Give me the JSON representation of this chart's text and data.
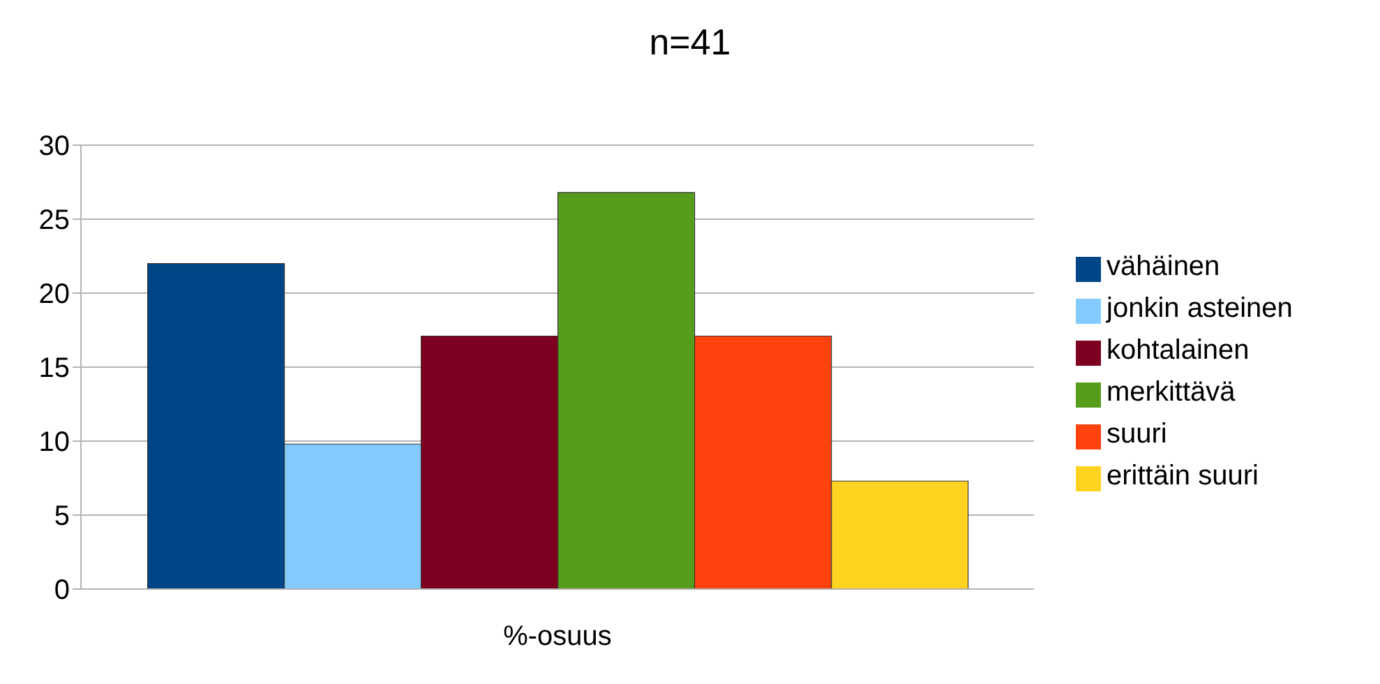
{
  "chart_data": {
    "type": "bar",
    "title": "n=41",
    "xlabel": "%-osuus",
    "categories": [
      null
    ],
    "series": [
      {
        "name": "vähäinen",
        "color": "#004586",
        "values": [
          22.0
        ]
      },
      {
        "name": "jonkin asteinen",
        "color": "#83caff",
        "values": [
          9.8
        ]
      },
      {
        "name": "kohtalainen",
        "color": "#7e0021",
        "values": [
          17.1
        ]
      },
      {
        "name": "merkittävä",
        "color": "#579d1c",
        "values": [
          26.8
        ]
      },
      {
        "name": "suuri",
        "color": "#ff420e",
        "values": [
          17.1
        ]
      },
      {
        "name": "erittäin suuri",
        "color": "#ffd320",
        "values": [
          7.3
        ]
      }
    ],
    "ylim": [
      0,
      30
    ],
    "yticks": [
      0,
      5,
      10,
      15,
      20,
      25,
      30
    ],
    "grid": "y",
    "legend": "right"
  }
}
